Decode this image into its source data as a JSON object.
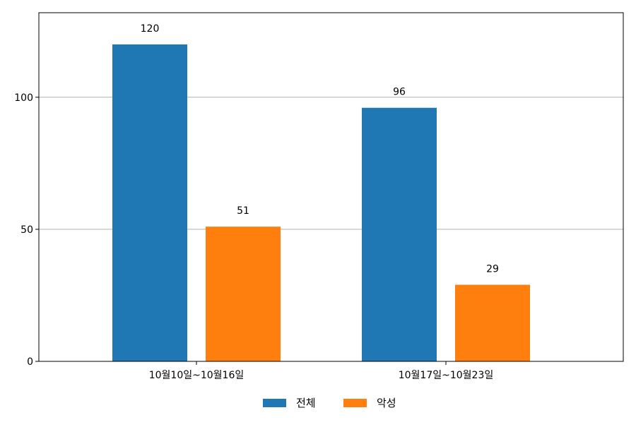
{
  "chart_data": {
    "type": "bar",
    "categories": [
      "10월10일~10월16일",
      "10월17일~10월23일"
    ],
    "series": [
      {
        "name": "전체",
        "values": [
          120,
          96
        ],
        "color": "#1f77b4"
      },
      {
        "name": "악성",
        "values": [
          51,
          29
        ],
        "color": "#ff7f0e"
      }
    ],
    "title": "",
    "xlabel": "",
    "ylabel": "",
    "ylim": [
      0,
      132
    ],
    "yticks": [
      0,
      50,
      100
    ],
    "grid": "horizontal",
    "legend": "bottom-center",
    "data_labels": true
  }
}
